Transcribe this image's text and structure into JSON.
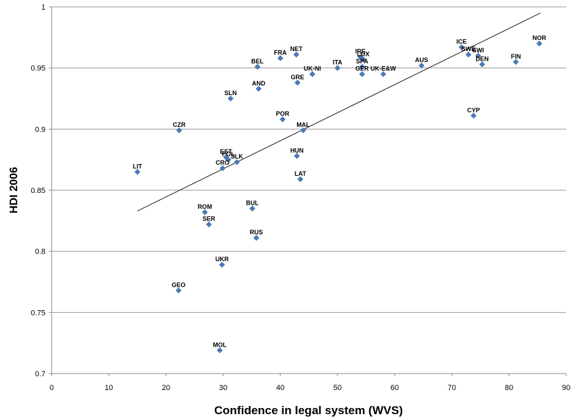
{
  "chart_data": {
    "type": "scatter",
    "xlabel": "Confidence in legal system (WVS)",
    "ylabel": "HDI 2006",
    "xlim": [
      0,
      90
    ],
    "ylim": [
      0.7,
      1
    ],
    "x_ticks": [
      "0",
      "10",
      "20",
      "30",
      "40",
      "50",
      "60",
      "70",
      "80",
      "90"
    ],
    "y_ticks": [
      "0.7",
      "0.75",
      "0.8",
      "0.85",
      "0.9",
      "0.95",
      "1"
    ],
    "grid": "horizontal",
    "marker_color": "#4a7ab5",
    "trendline": {
      "x": [
        15,
        85.5
      ],
      "y": [
        0.833,
        0.995
      ]
    },
    "points": [
      {
        "label": "LIT",
        "x": 15.0,
        "y": 0.865
      },
      {
        "label": "CZR",
        "x": 22.3,
        "y": 0.899
      },
      {
        "label": "GEO",
        "x": 22.2,
        "y": 0.768
      },
      {
        "label": "ROM",
        "x": 26.8,
        "y": 0.832
      },
      {
        "label": "SER",
        "x": 27.5,
        "y": 0.822
      },
      {
        "label": "MOL",
        "x": 29.4,
        "y": 0.719
      },
      {
        "label": "UKR",
        "x": 29.8,
        "y": 0.789
      },
      {
        "label": "CRO",
        "x": 29.9,
        "y": 0.868
      },
      {
        "label": "EST",
        "x": 30.5,
        "y": 0.877
      },
      {
        "label": "POL",
        "x": 30.9,
        "y": 0.875
      },
      {
        "label": "SLN",
        "x": 31.3,
        "y": 0.925
      },
      {
        "label": "SLK",
        "x": 32.4,
        "y": 0.873
      },
      {
        "label": "BUL",
        "x": 35.1,
        "y": 0.835
      },
      {
        "label": "RUS",
        "x": 35.8,
        "y": 0.811
      },
      {
        "label": "BEL",
        "x": 36.0,
        "y": 0.951
      },
      {
        "label": "AND",
        "x": 36.2,
        "y": 0.933
      },
      {
        "label": "FRA",
        "x": 40.0,
        "y": 0.958
      },
      {
        "label": "POR",
        "x": 40.4,
        "y": 0.908
      },
      {
        "label": "NET",
        "x": 42.8,
        "y": 0.961
      },
      {
        "label": "HUN",
        "x": 42.9,
        "y": 0.878
      },
      {
        "label": "GRE",
        "x": 43.0,
        "y": 0.938
      },
      {
        "label": "LAT",
        "x": 43.5,
        "y": 0.859
      },
      {
        "label": "MAL",
        "x": 44.0,
        "y": 0.899
      },
      {
        "label": "UK-NI",
        "x": 45.6,
        "y": 0.945
      },
      {
        "label": "ITA",
        "x": 50.0,
        "y": 0.95
      },
      {
        "label": "IRE",
        "x": 54.0,
        "y": 0.959
      },
      {
        "label": "SPA",
        "x": 54.3,
        "y": 0.951
      },
      {
        "label": "GER",
        "x": 54.3,
        "y": 0.945
      },
      {
        "label": "LUX",
        "x": 54.5,
        "y": 0.957
      },
      {
        "label": "UK-E&W",
        "x": 58.0,
        "y": 0.945
      },
      {
        "label": "AUS",
        "x": 64.7,
        "y": 0.952
      },
      {
        "label": "ICE",
        "x": 71.7,
        "y": 0.967
      },
      {
        "label": "SWE",
        "x": 72.9,
        "y": 0.961
      },
      {
        "label": "CYP",
        "x": 73.8,
        "y": 0.911
      },
      {
        "label": "SWI",
        "x": 74.6,
        "y": 0.96
      },
      {
        "label": "DEN",
        "x": 75.3,
        "y": 0.953
      },
      {
        "label": "FIN",
        "x": 81.2,
        "y": 0.955
      },
      {
        "label": "NOR",
        "x": 85.3,
        "y": 0.97
      }
    ]
  }
}
